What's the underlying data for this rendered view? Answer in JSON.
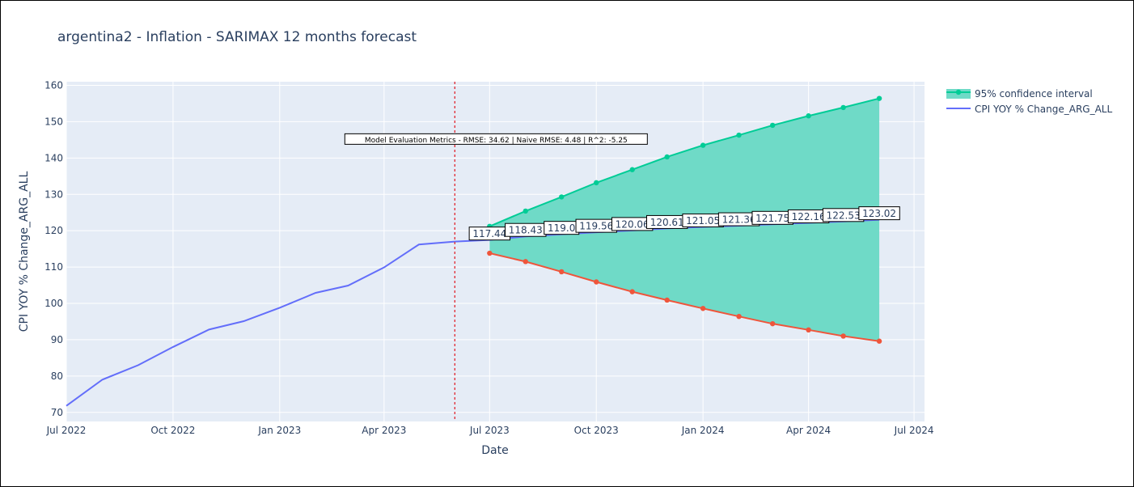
{
  "chart_data": {
    "type": "line",
    "title": "argentina2 - Inflation - SARIMAX 12 months forecast",
    "xlabel": "Date",
    "ylabel": "CPI YOY % Change_ARG_ALL",
    "x_range": [
      "2022-07-01",
      "2024-07-10"
    ],
    "ylim": [
      67.5,
      161
    ],
    "x_ticks": [
      {
        "date": "2022-07-01",
        "label": "Jul 2022"
      },
      {
        "date": "2022-10-01",
        "label": "Oct 2022"
      },
      {
        "date": "2023-01-01",
        "label": "Jan 2023"
      },
      {
        "date": "2023-04-01",
        "label": "Apr 2023"
      },
      {
        "date": "2023-07-01",
        "label": "Jul 2023"
      },
      {
        "date": "2023-10-01",
        "label": "Oct 2023"
      },
      {
        "date": "2024-01-01",
        "label": "Jan 2024"
      },
      {
        "date": "2024-04-01",
        "label": "Apr 2024"
      },
      {
        "date": "2024-07-01",
        "label": "Jul 2024"
      }
    ],
    "y_ticks": [
      70,
      80,
      90,
      100,
      110,
      120,
      130,
      140,
      150,
      160
    ],
    "grid": true,
    "legend_position": "top-right",
    "forecast_start_marker": "2023-06-01",
    "annotation": "Model Evaluation Metrics - RMSE: 34.62 | Naive RMSE: 4.48 | R^2: -5.25",
    "annotation_anchor": {
      "date": "2023-06-01",
      "value": 145
    },
    "series": [
      {
        "name": "CPI YOY % Change_ARG_ALL",
        "color": "#636efa",
        "x": [
          "2022-07-01",
          "2022-08-01",
          "2022-09-01",
          "2022-10-01",
          "2022-11-01",
          "2022-12-01",
          "2023-01-01",
          "2023-02-01",
          "2023-03-01",
          "2023-04-01",
          "2023-05-01",
          "2023-06-01",
          "2023-07-01",
          "2023-08-01",
          "2023-09-01",
          "2023-10-01",
          "2023-11-01",
          "2023-12-01",
          "2024-01-01",
          "2024-02-01",
          "2024-03-01",
          "2024-04-01",
          "2024-05-01",
          "2024-06-01"
        ],
        "values": [
          71.8,
          79.0,
          83.0,
          88.0,
          92.8,
          95.1,
          98.8,
          102.9,
          104.9,
          109.9,
          116.2,
          117.0,
          117.44,
          118.43,
          119.0,
          119.56,
          120.06,
          120.61,
          121.05,
          121.36,
          121.75,
          122.16,
          122.53,
          123.02
        ]
      },
      {
        "name": "95% confidence interval",
        "color": "#00cc96",
        "fill_color": "#6fdac7",
        "x": [
          "2023-07-01",
          "2023-08-01",
          "2023-09-01",
          "2023-10-01",
          "2023-11-01",
          "2023-12-01",
          "2024-01-01",
          "2024-02-01",
          "2024-03-01",
          "2024-04-01",
          "2024-05-01",
          "2024-06-01"
        ],
        "upper": [
          121.2,
          125.4,
          129.3,
          133.2,
          136.8,
          140.3,
          143.5,
          146.3,
          149.0,
          151.6,
          153.9,
          156.4
        ],
        "lower_color": "#ef553b",
        "lower": [
          113.8,
          111.5,
          108.7,
          105.9,
          103.2,
          100.9,
          98.6,
          96.4,
          94.4,
          92.7,
          91.0,
          89.6
        ]
      }
    ],
    "data_labels": [
      {
        "x": "2023-07-01",
        "y": 117.44,
        "text": "117.44"
      },
      {
        "x": "2023-08-01",
        "y": 118.43,
        "text": "118.43"
      },
      {
        "x": "2023-09-01",
        "y": 119.0,
        "text": "119.0"
      },
      {
        "x": "2023-10-01",
        "y": 119.56,
        "text": "119.56"
      },
      {
        "x": "2023-11-01",
        "y": 120.06,
        "text": "120.06"
      },
      {
        "x": "2023-12-01",
        "y": 120.61,
        "text": "120.61"
      },
      {
        "x": "2024-01-01",
        "y": 121.05,
        "text": "121.05"
      },
      {
        "x": "2024-02-01",
        "y": 121.36,
        "text": "121.36"
      },
      {
        "x": "2024-03-01",
        "y": 121.75,
        "text": "121.75"
      },
      {
        "x": "2024-04-01",
        "y": 122.16,
        "text": "122.16"
      },
      {
        "x": "2024-05-01",
        "y": 122.53,
        "text": "122.53"
      },
      {
        "x": "2024-06-01",
        "y": 123.02,
        "text": "123.02"
      }
    ]
  }
}
